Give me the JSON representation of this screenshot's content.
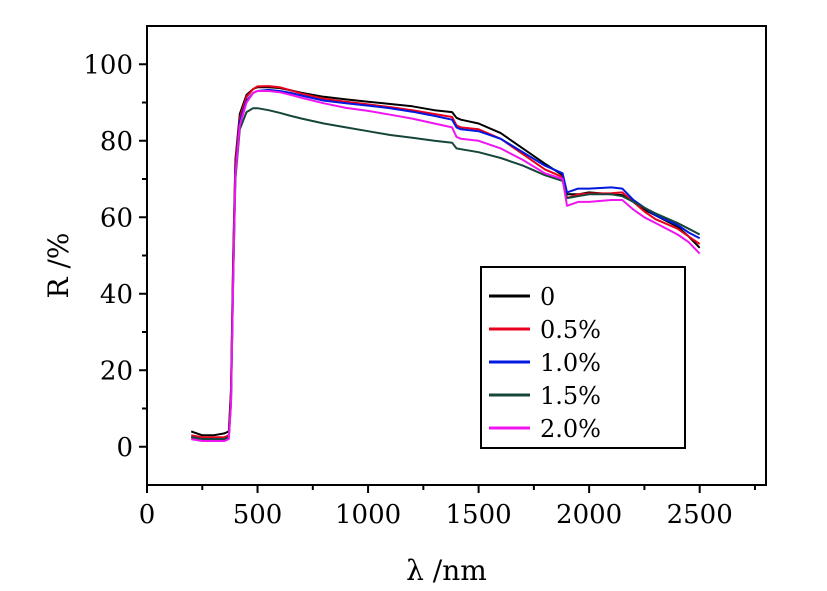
{
  "chart_data": {
    "type": "line",
    "title": "",
    "xlabel": "λ /nm",
    "ylabel": "R /%",
    "xlim": [
      0,
      2800
    ],
    "ylim": [
      -10,
      110
    ],
    "xticks": [
      0,
      500,
      1000,
      1500,
      2000,
      2500
    ],
    "yticks": [
      0,
      20,
      40,
      60,
      80,
      100
    ],
    "grid": false,
    "legend_position": "lower-right",
    "series": [
      {
        "name": "0",
        "color": "#000000",
        "x": [
          200,
          250,
          300,
          350,
          370,
          380,
          390,
          400,
          420,
          450,
          480,
          500,
          550,
          600,
          650,
          700,
          800,
          900,
          1000,
          1100,
          1200,
          1300,
          1380,
          1400,
          1420,
          1500,
          1600,
          1700,
          1800,
          1880,
          1900,
          1950,
          2000,
          2100,
          2150,
          2200,
          2250,
          2300,
          2400,
          2450,
          2500
        ],
        "y": [
          4,
          3,
          3,
          3.5,
          4,
          15,
          50,
          75,
          87,
          92,
          93.5,
          94,
          94,
          93.8,
          93.2,
          92.5,
          91.5,
          90.8,
          90.2,
          89.6,
          89,
          88,
          87.5,
          86,
          85.5,
          84.5,
          82,
          78,
          74,
          71,
          66,
          66,
          66.5,
          66,
          65.8,
          64,
          62,
          60.5,
          57.5,
          55,
          52
        ]
      },
      {
        "name": "0.5%",
        "color": "#e8001c",
        "x": [
          200,
          250,
          300,
          350,
          370,
          380,
          390,
          400,
          420,
          450,
          480,
          500,
          550,
          600,
          650,
          700,
          800,
          900,
          1000,
          1100,
          1200,
          1300,
          1380,
          1400,
          1420,
          1500,
          1600,
          1700,
          1800,
          1880,
          1900,
          1950,
          2000,
          2100,
          2150,
          2200,
          2250,
          2300,
          2400,
          2450,
          2500
        ],
        "y": [
          3,
          2.5,
          2.5,
          2.5,
          3,
          14,
          48,
          74,
          86,
          91.5,
          93.5,
          94.2,
          94.3,
          94,
          93.2,
          92.3,
          91,
          90.2,
          89.5,
          88.8,
          88,
          87,
          86.2,
          84,
          83.5,
          83,
          80.5,
          76.5,
          72.5,
          70.5,
          65,
          66,
          66.2,
          66.3,
          66.5,
          64,
          61.5,
          59.5,
          57,
          55,
          53
        ]
      },
      {
        "name": "1.0%",
        "color": "#0018e0",
        "x": [
          200,
          250,
          300,
          350,
          370,
          380,
          390,
          400,
          420,
          450,
          480,
          500,
          550,
          600,
          650,
          700,
          800,
          900,
          1000,
          1100,
          1200,
          1300,
          1380,
          1400,
          1420,
          1500,
          1600,
          1700,
          1800,
          1880,
          1900,
          1950,
          2000,
          2100,
          2150,
          2200,
          2250,
          2300,
          2400,
          2450,
          2500
        ],
        "y": [
          2.5,
          2,
          2,
          2,
          2.5,
          12,
          45,
          72,
          85,
          90.5,
          92.5,
          93,
          93.3,
          93,
          92.5,
          91.8,
          90.5,
          89.8,
          89.2,
          88.5,
          87.6,
          86.5,
          85.5,
          83.5,
          83,
          82.5,
          80.5,
          77,
          73.5,
          71.5,
          66.5,
          67.5,
          67.5,
          67.8,
          67.5,
          64.5,
          62.5,
          60.5,
          58,
          56,
          54.5
        ]
      },
      {
        "name": "1.5%",
        "color": "#16453a",
        "x": [
          200,
          250,
          300,
          350,
          370,
          380,
          390,
          400,
          420,
          450,
          480,
          500,
          550,
          600,
          650,
          700,
          800,
          900,
          1000,
          1100,
          1200,
          1300,
          1380,
          1400,
          1420,
          1500,
          1600,
          1700,
          1800,
          1880,
          1900,
          1950,
          2000,
          2100,
          2150,
          2200,
          2250,
          2300,
          2400,
          2450,
          2500
        ],
        "y": [
          2.5,
          2,
          2,
          2,
          2.5,
          12,
          44,
          70,
          83,
          87.5,
          88.5,
          88.5,
          88,
          87.3,
          86.5,
          85.8,
          84.5,
          83.5,
          82.5,
          81.5,
          80.8,
          80,
          79.5,
          78,
          77.8,
          77,
          75.5,
          73.5,
          71,
          69.5,
          65,
          65.5,
          66,
          66,
          65.5,
          64,
          62.5,
          61,
          58.5,
          57,
          55.5
        ]
      },
      {
        "name": "2.0%",
        "color": "#f015f0",
        "x": [
          200,
          250,
          300,
          350,
          370,
          380,
          390,
          400,
          420,
          450,
          480,
          500,
          550,
          600,
          650,
          700,
          800,
          900,
          1000,
          1100,
          1200,
          1300,
          1380,
          1400,
          1420,
          1500,
          1600,
          1700,
          1800,
          1880,
          1900,
          1950,
          2000,
          2100,
          2150,
          2200,
          2250,
          2300,
          2400,
          2450,
          2500
        ],
        "y": [
          2,
          1.5,
          1.5,
          1.5,
          2,
          11,
          44,
          71,
          84,
          90,
          92.5,
          93,
          93,
          92.7,
          92,
          91.2,
          89.8,
          88.6,
          87.8,
          86.8,
          85.8,
          84.5,
          83.5,
          81,
          80.5,
          80,
          78,
          75,
          71.5,
          70,
          63,
          64,
          64,
          64.5,
          64.5,
          62,
          60,
          58.5,
          55.5,
          53.5,
          50.5
        ]
      }
    ]
  }
}
